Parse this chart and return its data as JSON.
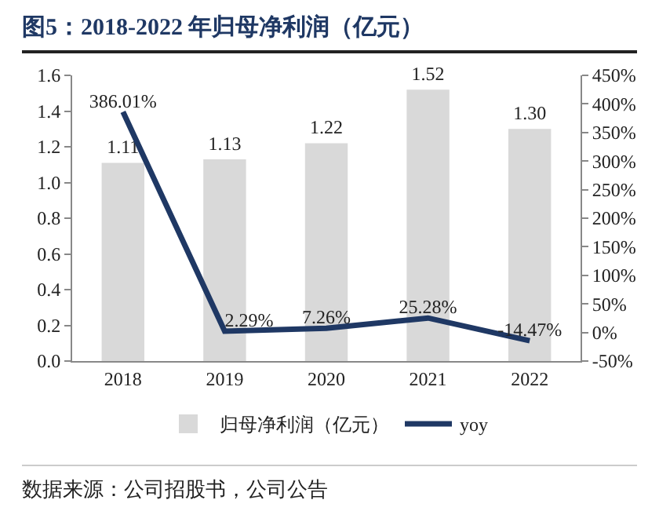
{
  "chart_data": {
    "type": "bar",
    "title": "图5：2018-2022 年归母净利润（亿元）",
    "categories": [
      "2018",
      "2019",
      "2020",
      "2021",
      "2022"
    ],
    "series": [
      {
        "name": "归母净利润（亿元）",
        "color": "#d9d9d9",
        "values": [
          1.11,
          1.13,
          1.22,
          1.52,
          1.3
        ],
        "value_labels": [
          "1.11",
          "1.13",
          "1.22",
          "1.52",
          "1.30"
        ]
      },
      {
        "name": "yoy",
        "type": "line",
        "axis": "y2",
        "color": "#1f3864",
        "values": [
          386.01,
          2.29,
          7.26,
          25.28,
          -14.47
        ],
        "value_labels": [
          "386.01%",
          "2.29%",
          "7.26%",
          "25.28%",
          "-14.47%"
        ]
      }
    ],
    "ylim": [
      0,
      1.6
    ],
    "yticks": [
      {
        "value": 0,
        "label": "0.0"
      },
      {
        "value": 0.2,
        "label": "0.2"
      },
      {
        "value": 0.4,
        "label": "0.4"
      },
      {
        "value": 0.6,
        "label": "0.6"
      },
      {
        "value": 0.8,
        "label": "0.8"
      },
      {
        "value": 1.0,
        "label": "1.0"
      },
      {
        "value": 1.2,
        "label": "1.2"
      },
      {
        "value": 1.4,
        "label": "1.4"
      },
      {
        "value": 1.6,
        "label": "1.6"
      }
    ],
    "y2lim": [
      -50,
      450
    ],
    "y2ticks": [
      {
        "value": -50,
        "label": "-50%"
      },
      {
        "value": 0,
        "label": "0%"
      },
      {
        "value": 50,
        "label": "50%"
      },
      {
        "value": 100,
        "label": "100%"
      },
      {
        "value": 150,
        "label": "150%"
      },
      {
        "value": 200,
        "label": "200%"
      },
      {
        "value": 250,
        "label": "250%"
      },
      {
        "value": 300,
        "label": "300%"
      },
      {
        "value": 350,
        "label": "350%"
      },
      {
        "value": 400,
        "label": "400%"
      },
      {
        "value": 450,
        "label": "450%"
      }
    ],
    "grid": false,
    "legend": "bottom",
    "marker": "none",
    "line_style": "solid",
    "annotations": [
      "数据来源：公司招股书，公司公告"
    ]
  }
}
